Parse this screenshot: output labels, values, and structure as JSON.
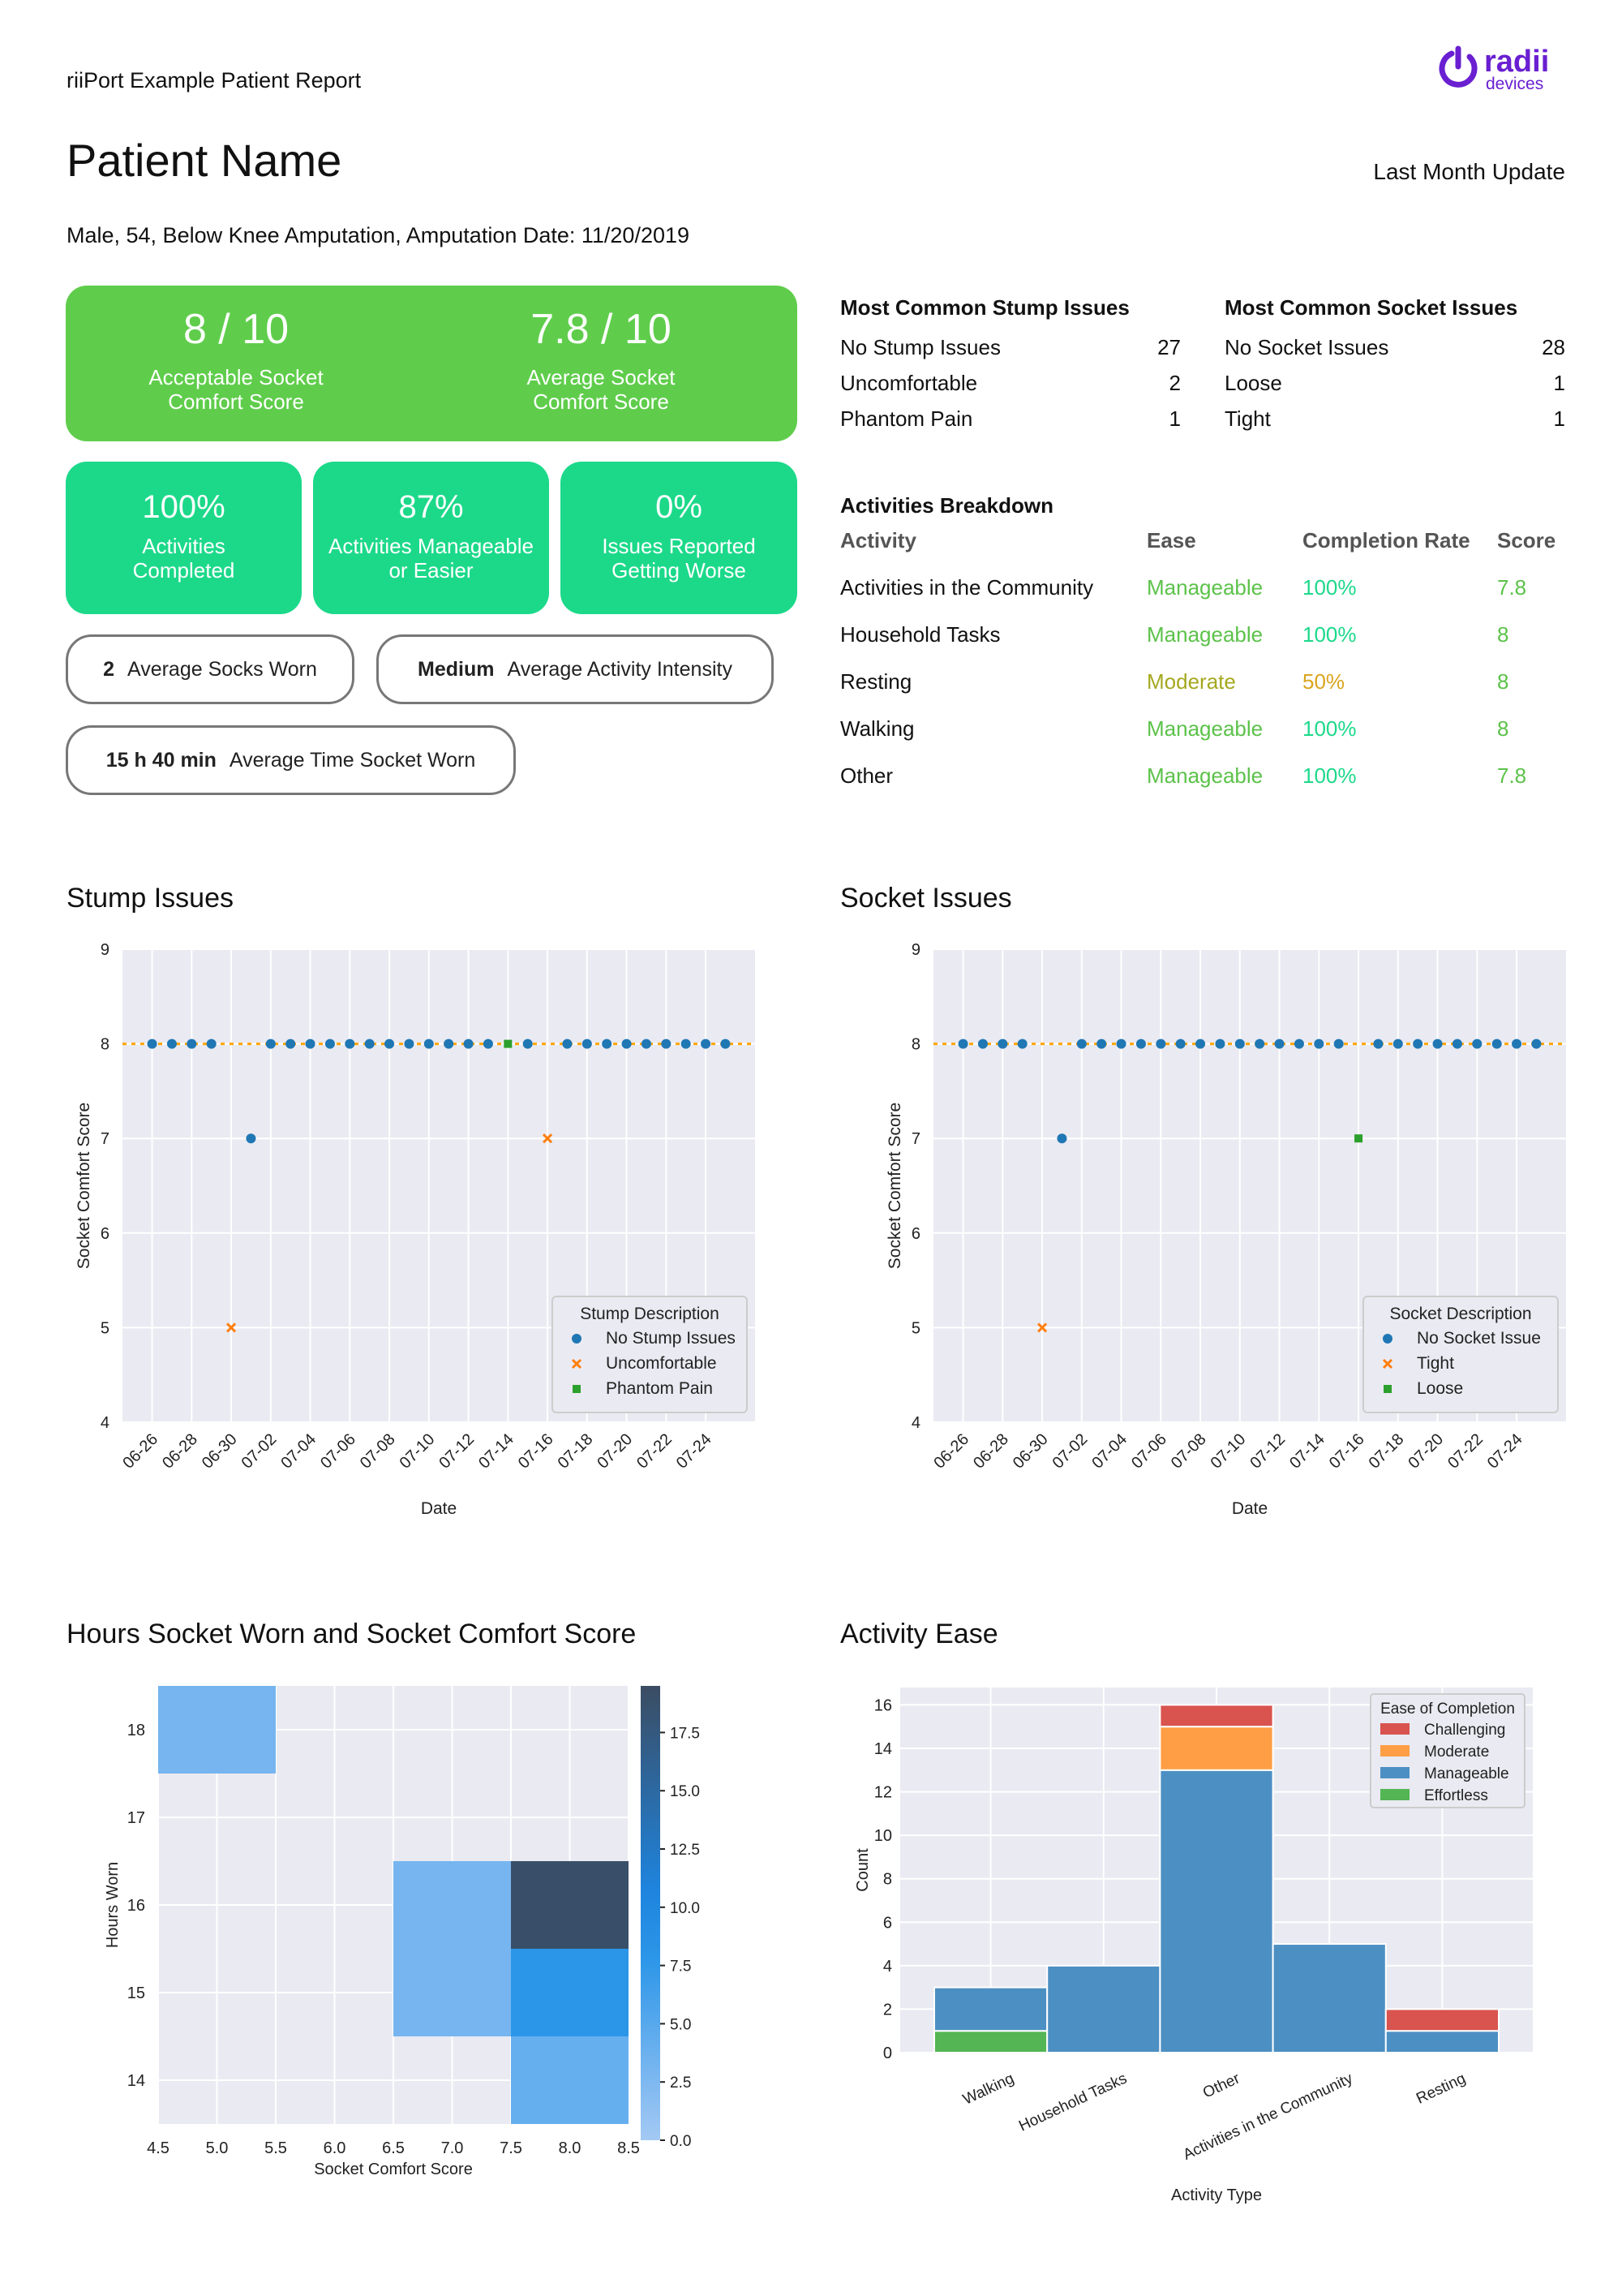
{
  "header": {
    "report_label": "riiPort Example Patient Report",
    "brand": {
      "word": "radii",
      "sub": "devices",
      "color": "#6a1fd1"
    },
    "patient_name": "Patient Name",
    "update_label": "Last Month Update",
    "demographics": "Male, 54, Below Knee Amputation, Amputation Date: 11/20/2019"
  },
  "scores": {
    "acceptable": {
      "value": "8 / 10",
      "label_1": "Acceptable Socket",
      "label_2": "Comfort Score"
    },
    "average": {
      "value": "7.8 / 10",
      "label_1": "Average Socket",
      "label_2": "Comfort Score"
    }
  },
  "kpis": [
    {
      "value": "100%",
      "label_1": "Activities",
      "label_2": "Completed"
    },
    {
      "value": "87%",
      "label_1": "Activities Manageable",
      "label_2": "or Easier"
    },
    {
      "value": "0%",
      "label_1": "Issues Reported",
      "label_2": "Getting Worse"
    }
  ],
  "pills": [
    {
      "value": "2",
      "label": "Average Socks Worn"
    },
    {
      "value": "Medium",
      "label": "Average Activity Intensity"
    },
    {
      "value": "15 h 40 min",
      "label": "Average Time Socket Worn"
    }
  ],
  "stump_issues": {
    "title": "Most Common Stump Issues",
    "rows": [
      {
        "label": "No Stump Issues",
        "count": "27"
      },
      {
        "label": "Uncomfortable",
        "count": "2"
      },
      {
        "label": "Phantom Pain",
        "count": "1"
      }
    ]
  },
  "socket_issues": {
    "title": "Most Common Socket Issues",
    "rows": [
      {
        "label": "No Socket Issues",
        "count": "28"
      },
      {
        "label": "Loose",
        "count": "1"
      },
      {
        "label": "Tight",
        "count": "1"
      }
    ]
  },
  "activities": {
    "title": "Activities Breakdown",
    "headers": [
      "Activity",
      "Ease",
      "Completion Rate",
      "Score"
    ],
    "rows": [
      {
        "activity": "Activities in the Community",
        "ease": "Manageable",
        "rate": "100%",
        "score": "7.8"
      },
      {
        "activity": "Household Tasks",
        "ease": "Manageable",
        "rate": "100%",
        "score": "8"
      },
      {
        "activity": "Resting",
        "ease": "Moderate",
        "rate": "50%",
        "score": "8"
      },
      {
        "activity": "Walking",
        "ease": "Manageable",
        "rate": "100%",
        "score": "8"
      },
      {
        "activity": "Other",
        "ease": "Manageable",
        "rate": "100%",
        "score": "7.8"
      }
    ]
  },
  "sections": {
    "stump": "Stump Issues",
    "socket": "Socket Issues",
    "heatmap": "Hours Socket Worn and Socket Comfort Score",
    "ease": "Activity Ease"
  },
  "colors": {
    "blue": "#1f77b4",
    "orange": "#ff7f0e",
    "green": "#2ca02c",
    "red": "#d62728",
    "ease_orange": "#ff9e45",
    "ease_blue": "#4c8fc3",
    "ease_green": "#53b553",
    "ease_red": "#d9534f"
  },
  "chart_data": [
    {
      "type": "scatter",
      "xlabel": "Date",
      "ylabel": "Socket Comfort Score",
      "ylim": [
        4,
        9
      ],
      "yticks": [
        4,
        5,
        6,
        7,
        8,
        9
      ],
      "xticks": [
        "06-26",
        "06-28",
        "06-30",
        "07-02",
        "07-04",
        "07-06",
        "07-08",
        "07-10",
        "07-12",
        "07-14",
        "07-16",
        "07-18",
        "07-20",
        "07-22",
        "07-24"
      ],
      "reference_line": 8,
      "legend": {
        "title": "Stump Description",
        "placement": "lower-right"
      },
      "series": [
        {
          "name": "No Stump Issues",
          "marker": "circle",
          "color": "#1f77b4",
          "points": [
            [
              "06-26",
              8
            ],
            [
              "06-27",
              8
            ],
            [
              "06-28",
              8
            ],
            [
              "06-29",
              8
            ],
            [
              "07-01",
              7
            ],
            [
              "07-02",
              8
            ],
            [
              "07-03",
              8
            ],
            [
              "07-04",
              8
            ],
            [
              "07-05",
              8
            ],
            [
              "07-06",
              8
            ],
            [
              "07-07",
              8
            ],
            [
              "07-08",
              8
            ],
            [
              "07-09",
              8
            ],
            [
              "07-10",
              8
            ],
            [
              "07-11",
              8
            ],
            [
              "07-12",
              8
            ],
            [
              "07-13",
              8
            ],
            [
              "07-15",
              8
            ],
            [
              "07-17",
              8
            ],
            [
              "07-18",
              8
            ],
            [
              "07-19",
              8
            ],
            [
              "07-20",
              8
            ],
            [
              "07-21",
              8
            ],
            [
              "07-22",
              8
            ],
            [
              "07-23",
              8
            ],
            [
              "07-24",
              8
            ],
            [
              "07-25",
              8
            ]
          ]
        },
        {
          "name": "Uncomfortable",
          "marker": "x",
          "color": "#ff7f0e",
          "points": [
            [
              "06-30",
              5
            ],
            [
              "07-16",
              7
            ]
          ]
        },
        {
          "name": "Phantom Pain",
          "marker": "square",
          "color": "#2ca02c",
          "points": [
            [
              "07-14",
              8
            ]
          ]
        }
      ]
    },
    {
      "type": "scatter",
      "xlabel": "Date",
      "ylabel": "Socket Comfort Score",
      "ylim": [
        4,
        9
      ],
      "yticks": [
        4,
        5,
        6,
        7,
        8,
        9
      ],
      "xticks": [
        "06-26",
        "06-28",
        "06-30",
        "07-02",
        "07-04",
        "07-06",
        "07-08",
        "07-10",
        "07-12",
        "07-14",
        "07-16",
        "07-18",
        "07-20",
        "07-22",
        "07-24"
      ],
      "reference_line": 8,
      "legend": {
        "title": "Socket Description",
        "placement": "lower-right"
      },
      "series": [
        {
          "name": "No Socket Issue",
          "marker": "circle",
          "color": "#1f77b4",
          "points": [
            [
              "06-26",
              8
            ],
            [
              "06-27",
              8
            ],
            [
              "06-28",
              8
            ],
            [
              "06-29",
              8
            ],
            [
              "07-01",
              7
            ],
            [
              "07-02",
              8
            ],
            [
              "07-03",
              8
            ],
            [
              "07-04",
              8
            ],
            [
              "07-05",
              8
            ],
            [
              "07-06",
              8
            ],
            [
              "07-07",
              8
            ],
            [
              "07-08",
              8
            ],
            [
              "07-09",
              8
            ],
            [
              "07-10",
              8
            ],
            [
              "07-11",
              8
            ],
            [
              "07-12",
              8
            ],
            [
              "07-13",
              8
            ],
            [
              "07-14",
              8
            ],
            [
              "07-15",
              8
            ],
            [
              "07-17",
              8
            ],
            [
              "07-18",
              8
            ],
            [
              "07-19",
              8
            ],
            [
              "07-20",
              8
            ],
            [
              "07-21",
              8
            ],
            [
              "07-22",
              8
            ],
            [
              "07-23",
              8
            ],
            [
              "07-24",
              8
            ],
            [
              "07-25",
              8
            ]
          ]
        },
        {
          "name": "Tight",
          "marker": "x",
          "color": "#ff7f0e",
          "points": [
            [
              "06-30",
              5
            ]
          ]
        },
        {
          "name": "Loose",
          "marker": "square",
          "color": "#2ca02c",
          "points": [
            [
              "07-16",
              7
            ]
          ]
        }
      ]
    },
    {
      "type": "heatmap",
      "xlabel": "Socket Comfort Score",
      "ylabel": "Hours Worn",
      "xlim": [
        4.5,
        8.5
      ],
      "ylim": [
        13.5,
        18.5
      ],
      "xticks": [
        "4.5",
        "5.0",
        "5.5",
        "6.0",
        "6.5",
        "7.0",
        "7.5",
        "8.0",
        "8.5"
      ],
      "yticks": [
        "14",
        "15",
        "16",
        "17",
        "18"
      ],
      "colorbar": {
        "min": 0,
        "max": 19.5,
        "ticks": [
          "0.0",
          "2.5",
          "5.0",
          "7.5",
          "10.0",
          "12.5",
          "15.0",
          "17.5"
        ]
      },
      "cells": [
        {
          "x0": 4.5,
          "x1": 5.5,
          "y0": 17.5,
          "y1": 18.5,
          "count": 3
        },
        {
          "x0": 6.5,
          "x1": 7.5,
          "y0": 14.5,
          "y1": 16.5,
          "count": 3
        },
        {
          "x0": 7.5,
          "x1": 8.5,
          "y0": 15.5,
          "y1": 16.5,
          "count": 19
        },
        {
          "x0": 7.5,
          "x1": 8.5,
          "y0": 14.5,
          "y1": 15.5,
          "count": 8
        },
        {
          "x0": 7.5,
          "x1": 8.5,
          "y0": 13.5,
          "y1": 14.5,
          "count": 4
        }
      ]
    },
    {
      "type": "bar",
      "stacked": true,
      "xlabel": "Activity Type",
      "ylabel": "Count",
      "ylim": [
        0,
        16.8
      ],
      "yticks": [
        0,
        2,
        4,
        6,
        8,
        10,
        12,
        14,
        16
      ],
      "categories": [
        "Walking",
        "Household Tasks",
        "Other",
        "Activities in the Community",
        "Resting"
      ],
      "legend": {
        "title": "Ease of Completion",
        "placement": "top-right",
        "order": [
          "Challenging",
          "Moderate",
          "Manageable",
          "Effortless"
        ]
      },
      "series": [
        {
          "name": "Effortless",
          "color": "#53b553",
          "values": [
            1,
            0,
            0,
            0,
            0
          ]
        },
        {
          "name": "Manageable",
          "color": "#4c8fc3",
          "values": [
            2,
            4,
            13,
            5,
            1
          ]
        },
        {
          "name": "Moderate",
          "color": "#ff9e45",
          "values": [
            0,
            0,
            2,
            0,
            0
          ]
        },
        {
          "name": "Challenging",
          "color": "#d9534f",
          "values": [
            0,
            0,
            1,
            0,
            1
          ]
        }
      ]
    }
  ]
}
